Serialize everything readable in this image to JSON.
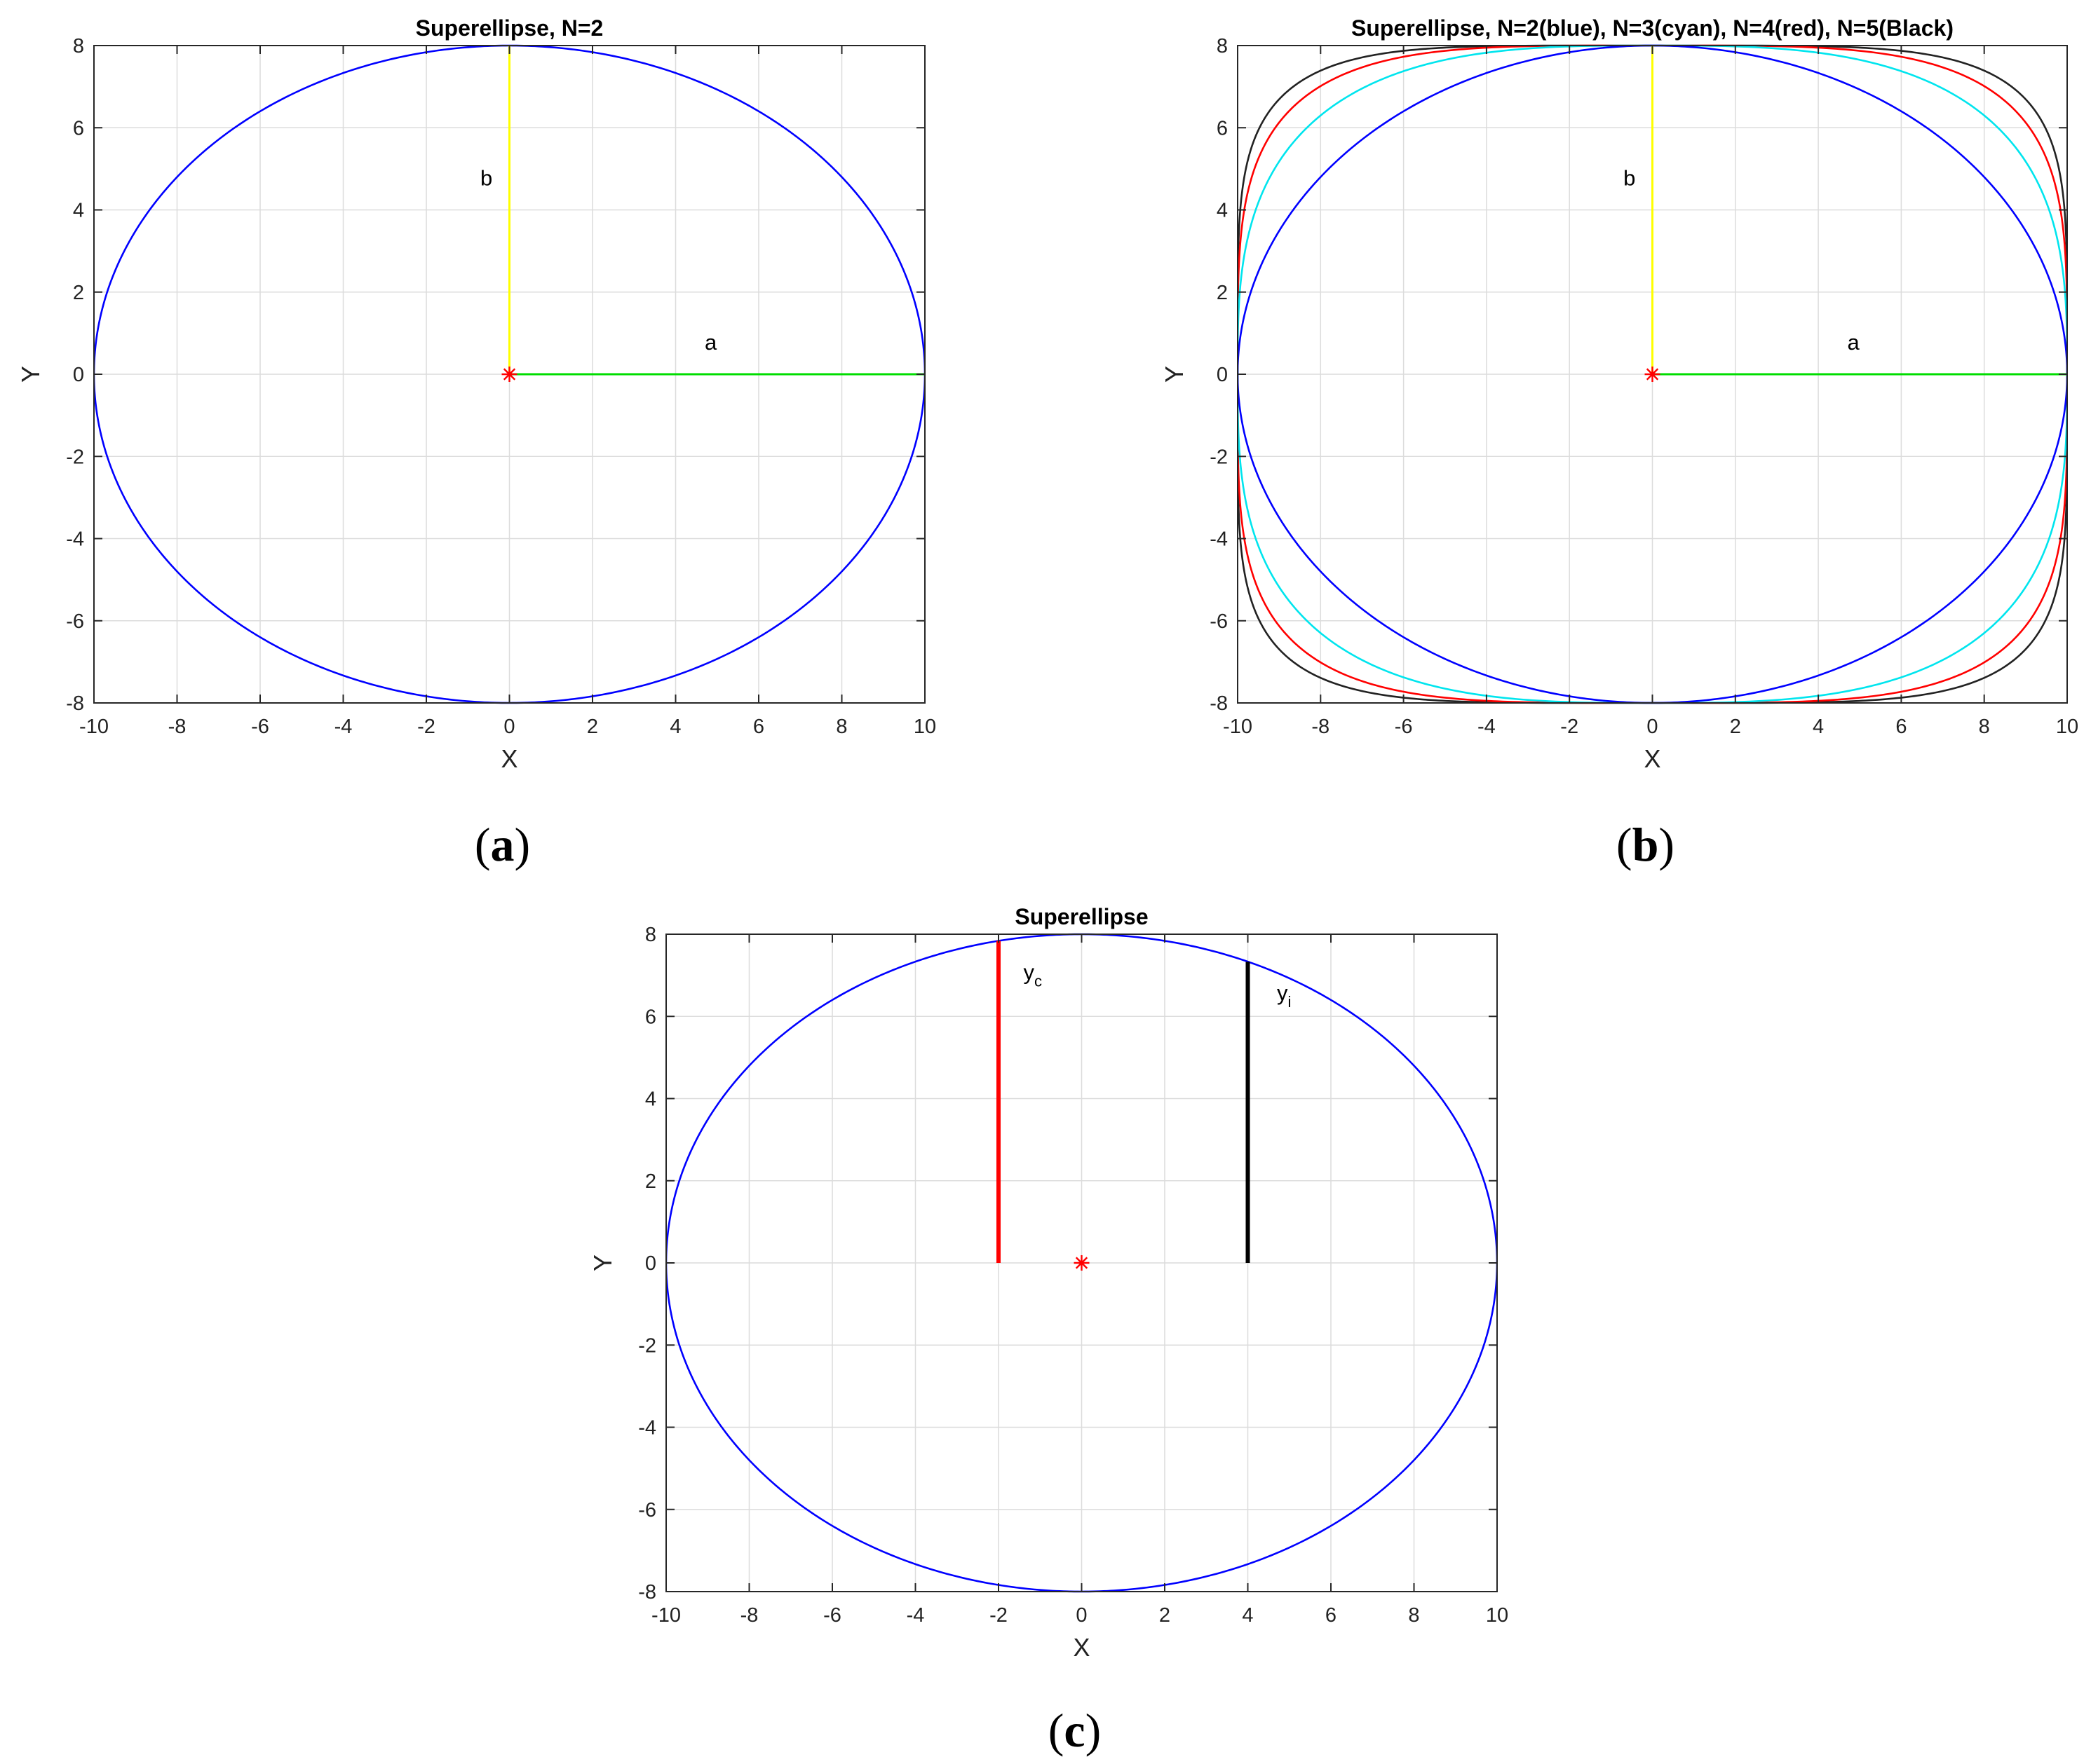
{
  "chart_data": [
    {
      "type": "line",
      "panel_label": "a",
      "title": "Superellipse, N=2",
      "xlabel": "X",
      "ylabel": "Y",
      "xlim": [
        -10,
        10
      ],
      "ylim": [
        -8,
        8
      ],
      "xticks": [
        -10,
        -8,
        -6,
        -4,
        -2,
        0,
        2,
        4,
        6,
        8,
        10
      ],
      "yticks": [
        -8,
        -6,
        -4,
        -2,
        0,
        2,
        4,
        6,
        8
      ],
      "grid": true,
      "superellipses": [
        {
          "a": 10,
          "b": 8,
          "n": 2,
          "color": "#0000ff"
        }
      ],
      "segments": [
        {
          "x": [
            0,
            0
          ],
          "y": [
            0,
            8
          ],
          "color": "#ffff00",
          "width": 3
        },
        {
          "x": [
            0,
            10
          ],
          "y": [
            0,
            0
          ],
          "color": "#00dd00",
          "width": 3
        }
      ],
      "markers": [
        {
          "x": 0,
          "y": 0,
          "symbol": "*",
          "color": "#ff0000"
        }
      ],
      "annotations": [
        {
          "text": "b",
          "sub": "",
          "x": -0.7,
          "y": 4.6
        },
        {
          "text": "a",
          "sub": "",
          "x": 4.7,
          "y": 0.6
        }
      ]
    },
    {
      "type": "line",
      "panel_label": "b",
      "title": "Superellipse, N=2(blue), N=3(cyan), N=4(red), N=5(Black)",
      "xlabel": "X",
      "ylabel": "Y",
      "xlim": [
        -10,
        10
      ],
      "ylim": [
        -8,
        8
      ],
      "xticks": [
        -10,
        -8,
        -6,
        -4,
        -2,
        0,
        2,
        4,
        6,
        8,
        10
      ],
      "yticks": [
        -8,
        -6,
        -4,
        -2,
        0,
        2,
        4,
        6,
        8
      ],
      "grid": true,
      "superellipses": [
        {
          "a": 10,
          "b": 8,
          "n": 5,
          "color": "#222222"
        },
        {
          "a": 10,
          "b": 8,
          "n": 4,
          "color": "#ff0000"
        },
        {
          "a": 10,
          "b": 8,
          "n": 3,
          "color": "#00e5ee"
        },
        {
          "a": 10,
          "b": 8,
          "n": 2,
          "color": "#0000ff"
        }
      ],
      "segments": [
        {
          "x": [
            0,
            0
          ],
          "y": [
            0,
            8
          ],
          "color": "#ffff00",
          "width": 3
        },
        {
          "x": [
            0,
            10
          ],
          "y": [
            0,
            0
          ],
          "color": "#00dd00",
          "width": 3
        }
      ],
      "markers": [
        {
          "x": 0,
          "y": 0,
          "symbol": "*",
          "color": "#ff0000"
        }
      ],
      "annotations": [
        {
          "text": "b",
          "sub": "",
          "x": -0.7,
          "y": 4.6
        },
        {
          "text": "a",
          "sub": "",
          "x": 4.7,
          "y": 0.6
        }
      ]
    },
    {
      "type": "line",
      "panel_label": "c",
      "title": "Superellipse",
      "xlabel": "X",
      "ylabel": "Y",
      "xlim": [
        -10,
        10
      ],
      "ylim": [
        -8,
        8
      ],
      "xticks": [
        -10,
        -8,
        -6,
        -4,
        -2,
        0,
        2,
        4,
        6,
        8,
        10
      ],
      "yticks": [
        -8,
        -6,
        -4,
        -2,
        0,
        2,
        4,
        6,
        8
      ],
      "grid": true,
      "superellipses": [
        {
          "a": 10,
          "b": 8,
          "n": 2,
          "color": "#0000ff"
        }
      ],
      "segments": [
        {
          "x": [
            -2,
            -2
          ],
          "y": [
            0,
            7.84
          ],
          "color": "#ff0000",
          "width": 6
        },
        {
          "x": [
            4,
            4
          ],
          "y": [
            0,
            7.33
          ],
          "color": "#000000",
          "width": 6
        }
      ],
      "markers": [
        {
          "x": 0,
          "y": 0,
          "symbol": "*",
          "color": "#ff0000"
        }
      ],
      "annotations": [
        {
          "text": "y",
          "sub": "c",
          "x": -1.4,
          "y": 6.9
        },
        {
          "text": "y",
          "sub": "i",
          "x": 4.7,
          "y": 6.4
        }
      ]
    }
  ]
}
